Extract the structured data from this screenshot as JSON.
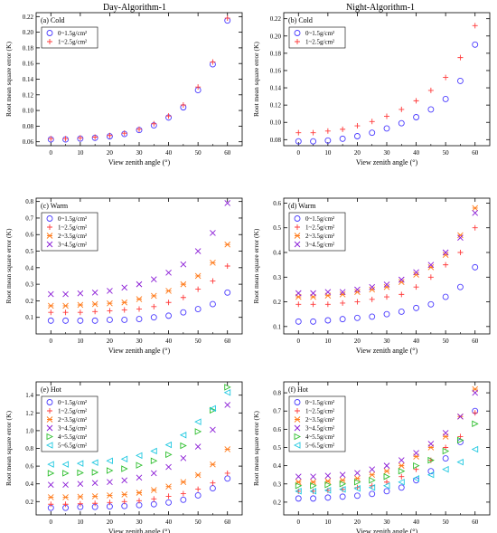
{
  "header": {
    "left_title": "Day-Algorithm-1",
    "right_title": "Night-Algorithm-1"
  },
  "colors": {
    "0-1.5": "#4b3cff",
    "1-2.5": "#ff3b3b",
    "2-3.5": "#ff7a1a",
    "3-4.5": "#8a1bd6",
    "4-5.5": "#2fbf2f",
    "5-6.5": "#1fc8e0"
  },
  "chart_data": [
    {
      "id": "a",
      "type": "scatter",
      "panel_label": "(a) Cold",
      "xlabel": "View zenith angle (°)",
      "ylabel": "Root mean square error (K)",
      "xlim": [
        -5,
        65
      ],
      "ylim": [
        0.055,
        0.225
      ],
      "xticks": [
        0,
        10,
        20,
        30,
        40,
        50,
        60
      ],
      "yticks": [
        0.06,
        0.08,
        0.1,
        0.12,
        0.14,
        0.16,
        0.18,
        0.2,
        0.22
      ],
      "ytick_labels": [
        "0.06",
        "0.08",
        "0.10",
        "0.12",
        "0.14",
        "0.16",
        "0.18",
        "0.20",
        "0.22"
      ],
      "x": [
        0,
        5,
        10,
        15,
        20,
        25,
        30,
        35,
        40,
        45,
        50,
        55,
        60
      ],
      "series": [
        {
          "name": "0~1.5g/cm²",
          "marker": "circle",
          "color_key": "0-1.5",
          "values": [
            0.063,
            0.063,
            0.064,
            0.065,
            0.067,
            0.07,
            0.075,
            0.081,
            0.091,
            0.104,
            0.126,
            0.159,
            0.215
          ]
        },
        {
          "name": "1~2.5g/cm²",
          "marker": "plus",
          "color_key": "1-2.5",
          "values": [
            0.064,
            0.064,
            0.065,
            0.066,
            0.068,
            0.071,
            0.076,
            0.083,
            0.093,
            0.107,
            0.13,
            0.162,
            0.218
          ]
        }
      ]
    },
    {
      "id": "b",
      "type": "scatter",
      "panel_label": "(b) Cold",
      "xlabel": "View zenith angle (°)",
      "ylabel": "Root mean square error (K)",
      "xlim": [
        -5,
        65
      ],
      "ylim": [
        0.073,
        0.227
      ],
      "xticks": [
        0,
        10,
        20,
        30,
        40,
        50,
        60
      ],
      "yticks": [
        0.08,
        0.1,
        0.12,
        0.14,
        0.16,
        0.18,
        0.2,
        0.22
      ],
      "ytick_labels": [
        "0.08",
        "0.10",
        "0.12",
        "0.14",
        "0.16",
        "0.18",
        "0.20",
        "0.22"
      ],
      "x": [
        0,
        5,
        10,
        15,
        20,
        25,
        30,
        35,
        40,
        45,
        50,
        55,
        60
      ],
      "series": [
        {
          "name": "0~1.5g/cm²",
          "marker": "circle",
          "color_key": "0-1.5",
          "values": [
            0.078,
            0.078,
            0.079,
            0.081,
            0.084,
            0.088,
            0.093,
            0.099,
            0.106,
            0.115,
            0.127,
            0.148,
            0.19
          ]
        },
        {
          "name": "1~2.5g/cm²",
          "marker": "plus",
          "color_key": "1-2.5",
          "values": [
            0.088,
            0.088,
            0.09,
            0.092,
            0.096,
            0.101,
            0.107,
            0.115,
            0.125,
            0.137,
            0.152,
            0.175,
            0.212
          ]
        }
      ]
    },
    {
      "id": "c",
      "type": "scatter",
      "panel_label": "(c) Warm",
      "xlabel": "View zenith angle (°)",
      "ylabel": "Root mean square error (K)",
      "xlim": [
        -5,
        65
      ],
      "ylim": [
        0.0,
        0.82
      ],
      "xticks": [
        0,
        10,
        20,
        30,
        40,
        50,
        60
      ],
      "yticks": [
        0.1,
        0.2,
        0.3,
        0.4,
        0.5,
        0.6,
        0.7,
        0.8
      ],
      "ytick_labels": [
        "0.1",
        "0.2",
        "0.3",
        "0.4",
        "0.5",
        "0.6",
        "0.7",
        "0.8"
      ],
      "x": [
        0,
        5,
        10,
        15,
        20,
        25,
        30,
        35,
        40,
        45,
        50,
        55,
        60
      ],
      "series": [
        {
          "name": "0~1.5g/cm²",
          "marker": "circle",
          "color_key": "0-1.5",
          "values": [
            0.08,
            0.08,
            0.08,
            0.08,
            0.085,
            0.085,
            0.09,
            0.1,
            0.11,
            0.13,
            0.15,
            0.18,
            0.25
          ]
        },
        {
          "name": "1~2.5g/cm²",
          "marker": "plus",
          "color_key": "1-2.5",
          "values": [
            0.13,
            0.13,
            0.13,
            0.135,
            0.14,
            0.145,
            0.15,
            0.165,
            0.19,
            0.22,
            0.27,
            0.32,
            0.41
          ]
        },
        {
          "name": "2~3.5g/cm²",
          "marker": "star",
          "color_key": "2-3.5",
          "values": [
            0.17,
            0.17,
            0.175,
            0.18,
            0.185,
            0.19,
            0.21,
            0.23,
            0.26,
            0.3,
            0.35,
            0.43,
            0.54
          ]
        },
        {
          "name": "3~4.5g/cm²",
          "marker": "cross",
          "color_key": "3-4.5",
          "values": [
            0.24,
            0.24,
            0.245,
            0.25,
            0.26,
            0.28,
            0.3,
            0.33,
            0.37,
            0.42,
            0.5,
            0.61,
            0.79
          ]
        }
      ]
    },
    {
      "id": "d",
      "type": "scatter",
      "panel_label": "(d) Warm",
      "xlabel": "View zenith angle (°)",
      "ylabel": "Root mean square error (K)",
      "xlim": [
        -5,
        65
      ],
      "ylim": [
        0.07,
        0.62
      ],
      "xticks": [
        0,
        10,
        20,
        30,
        40,
        50,
        60
      ],
      "yticks": [
        0.1,
        0.2,
        0.3,
        0.4,
        0.5,
        0.6
      ],
      "ytick_labels": [
        "0.1",
        "0.2",
        "0.3",
        "0.4",
        "0.5",
        "0.6"
      ],
      "x": [
        0,
        5,
        10,
        15,
        20,
        25,
        30,
        35,
        40,
        45,
        50,
        55,
        60
      ],
      "series": [
        {
          "name": "0~1.5g/cm²",
          "marker": "circle",
          "color_key": "0-1.5",
          "values": [
            0.12,
            0.12,
            0.125,
            0.13,
            0.135,
            0.14,
            0.15,
            0.16,
            0.175,
            0.19,
            0.22,
            0.26,
            0.34
          ]
        },
        {
          "name": "1~2.5g/cm²",
          "marker": "plus",
          "color_key": "1-2.5",
          "values": [
            0.19,
            0.19,
            0.19,
            0.195,
            0.2,
            0.21,
            0.22,
            0.23,
            0.26,
            0.3,
            0.35,
            0.4,
            0.5
          ]
        },
        {
          "name": "2~3.5g/cm²",
          "marker": "star",
          "color_key": "2-3.5",
          "values": [
            0.22,
            0.22,
            0.225,
            0.23,
            0.24,
            0.25,
            0.26,
            0.28,
            0.31,
            0.34,
            0.39,
            0.47,
            0.58
          ]
        },
        {
          "name": "3~4.5g/cm²",
          "marker": "cross",
          "color_key": "3-4.5",
          "values": [
            0.235,
            0.235,
            0.24,
            0.24,
            0.25,
            0.26,
            0.27,
            0.29,
            0.32,
            0.35,
            0.4,
            0.46,
            0.56
          ]
        }
      ]
    },
    {
      "id": "e",
      "type": "scatter",
      "panel_label": "(e) Hot",
      "xlabel": "View zenith angle (°)",
      "ylabel": "Root mean square error (K)",
      "xlim": [
        -5,
        65
      ],
      "ylim": [
        0.05,
        1.55
      ],
      "xticks": [
        0,
        10,
        20,
        30,
        40,
        50,
        60
      ],
      "yticks": [
        0.2,
        0.4,
        0.6,
        0.8,
        1.0,
        1.2,
        1.4
      ],
      "ytick_labels": [
        "0.2",
        "0.4",
        "0.6",
        "0.8",
        "1.0",
        "1.2",
        "1.4"
      ],
      "x": [
        0,
        5,
        10,
        15,
        20,
        25,
        30,
        35,
        40,
        45,
        50,
        55,
        60
      ],
      "series": [
        {
          "name": "0~1.5g/cm²",
          "marker": "circle",
          "color_key": "0-1.5",
          "values": [
            0.13,
            0.13,
            0.14,
            0.14,
            0.145,
            0.15,
            0.16,
            0.17,
            0.19,
            0.22,
            0.27,
            0.35,
            0.46
          ]
        },
        {
          "name": "1~2.5g/cm²",
          "marker": "plus",
          "color_key": "1-2.5",
          "values": [
            0.17,
            0.17,
            0.175,
            0.18,
            0.19,
            0.2,
            0.21,
            0.23,
            0.26,
            0.29,
            0.34,
            0.41,
            0.52
          ]
        },
        {
          "name": "2~3.5g/cm²",
          "marker": "star",
          "color_key": "2-3.5",
          "values": [
            0.25,
            0.25,
            0.255,
            0.26,
            0.27,
            0.28,
            0.3,
            0.33,
            0.37,
            0.42,
            0.5,
            0.62,
            0.79
          ]
        },
        {
          "name": "3~4.5g/cm²",
          "marker": "cross",
          "color_key": "3-4.5",
          "values": [
            0.39,
            0.39,
            0.4,
            0.41,
            0.42,
            0.44,
            0.47,
            0.52,
            0.59,
            0.69,
            0.82,
            1.01,
            1.29
          ]
        },
        {
          "name": "4~5.5g/cm²",
          "marker": "triangle-right",
          "color_key": "4-5.5",
          "values": [
            0.52,
            0.52,
            0.525,
            0.53,
            0.55,
            0.57,
            0.61,
            0.66,
            0.73,
            0.83,
            0.99,
            1.23,
            1.49
          ]
        },
        {
          "name": "5~6.5g/cm²",
          "marker": "triangle-left",
          "color_key": "5-6.5",
          "values": [
            0.62,
            0.62,
            0.63,
            0.64,
            0.66,
            0.68,
            0.72,
            0.77,
            0.84,
            0.95,
            1.1,
            1.25,
            1.43
          ]
        }
      ]
    },
    {
      "id": "f",
      "type": "scatter",
      "panel_label": "(f) Hot",
      "xlabel": "View zenith angle (°)",
      "ylabel": "Root mean square error (K)",
      "xlim": [
        -5,
        65
      ],
      "ylim": [
        0.13,
        0.86
      ],
      "xticks": [
        0,
        10,
        20,
        30,
        40,
        50,
        60
      ],
      "yticks": [
        0.2,
        0.3,
        0.4,
        0.5,
        0.6,
        0.7,
        0.8
      ],
      "ytick_labels": [
        "0.2",
        "0.3",
        "0.4",
        "0.5",
        "0.6",
        "0.7",
        "0.8"
      ],
      "x": [
        0,
        5,
        10,
        15,
        20,
        25,
        30,
        35,
        40,
        45,
        50,
        55,
        60
      ],
      "series": [
        {
          "name": "0~1.5g/cm²",
          "marker": "circle",
          "color_key": "0-1.5",
          "values": [
            0.22,
            0.22,
            0.225,
            0.23,
            0.235,
            0.245,
            0.26,
            0.28,
            0.32,
            0.37,
            0.44,
            0.53,
            0.7
          ]
        },
        {
          "name": "1~2.5g/cm²",
          "marker": "plus",
          "color_key": "1-2.5",
          "values": [
            0.26,
            0.26,
            0.265,
            0.27,
            0.28,
            0.29,
            0.31,
            0.34,
            0.38,
            0.43,
            0.5,
            0.56,
            0.69
          ]
        },
        {
          "name": "2~3.5g/cm²",
          "marker": "star",
          "color_key": "2-3.5",
          "values": [
            0.31,
            0.31,
            0.315,
            0.32,
            0.33,
            0.35,
            0.37,
            0.4,
            0.45,
            0.5,
            0.56,
            0.67,
            0.82
          ]
        },
        {
          "name": "3~4.5g/cm²",
          "marker": "cross",
          "color_key": "3-4.5",
          "values": [
            0.34,
            0.34,
            0.345,
            0.35,
            0.36,
            0.38,
            0.4,
            0.43,
            0.47,
            0.52,
            0.58,
            0.67,
            0.8
          ]
        },
        {
          "name": "4~5.5g/cm²",
          "marker": "triangle-right",
          "color_key": "4-5.5",
          "values": [
            0.29,
            0.29,
            0.295,
            0.3,
            0.31,
            0.32,
            0.34,
            0.37,
            0.4,
            0.43,
            0.48,
            0.54,
            0.63
          ]
        },
        {
          "name": "5~6.5g/cm²",
          "marker": "triangle-left",
          "color_key": "5-6.5",
          "values": [
            0.26,
            0.26,
            0.265,
            0.27,
            0.275,
            0.28,
            0.29,
            0.31,
            0.33,
            0.35,
            0.38,
            0.42,
            0.49
          ]
        }
      ]
    }
  ]
}
